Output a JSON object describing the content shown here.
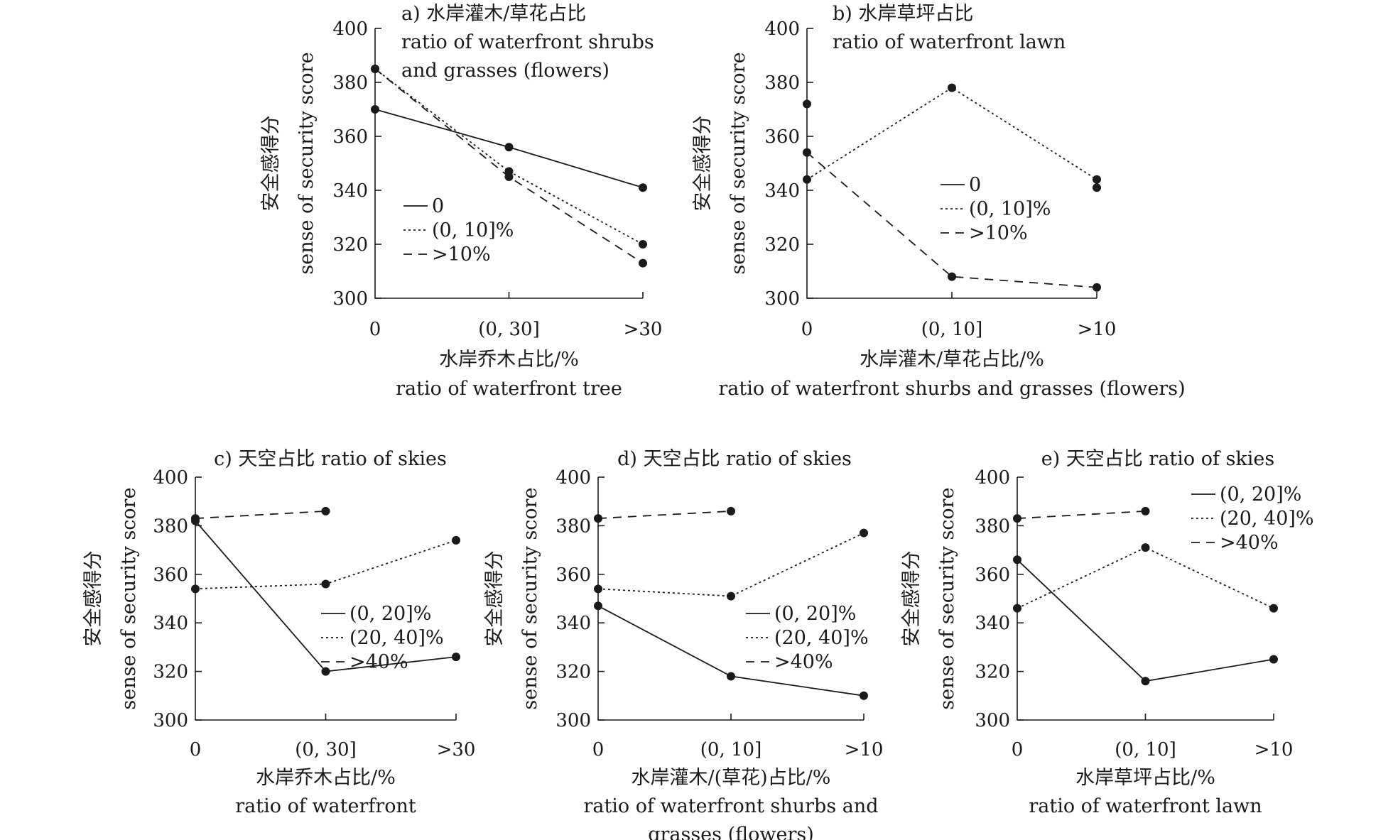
{
  "chart_data": [
    {
      "id": "a",
      "type": "line",
      "title_lines": [
        "a) 水岸灌木/草花占比",
        "ratio of waterfront shrubs",
        "and grasses (flowers)"
      ],
      "xlabel_lines": [
        "水岸乔木占比/%",
        "ratio of waterfront tree"
      ],
      "ylabel_lines": [
        "安全感得分",
        "sense of security score"
      ],
      "categories": [
        "0",
        "(0, 30]",
        ">30"
      ],
      "ylim": [
        300,
        400
      ],
      "yticks": [
        300,
        320,
        340,
        360,
        380,
        400
      ],
      "series": [
        {
          "name": "0",
          "style": "solid",
          "values": [
            370,
            356,
            341
          ]
        },
        {
          "name": "(0, 10]%",
          "style": "dotted",
          "values": [
            385,
            347,
            320
          ]
        },
        {
          "name": ">10%",
          "style": "dashed",
          "values": [
            385,
            345,
            313
          ]
        }
      ],
      "legend": "center-left"
    },
    {
      "id": "b",
      "type": "line",
      "title_lines": [
        "b) 水岸草坪占比",
        "ratio of waterfront lawn"
      ],
      "xlabel_lines": [
        "水岸灌木/草花占比/%",
        "ratio of waterfront shurbs and grasses (flowers)"
      ],
      "ylabel_lines": [
        "安全感得分",
        "sense of security score"
      ],
      "categories": [
        "0",
        "(0, 10]",
        ">10"
      ],
      "ylim": [
        300,
        400
      ],
      "yticks": [
        300,
        320,
        340,
        360,
        380,
        400
      ],
      "series": [
        {
          "name": "0",
          "style": "solid",
          "values": [
            372,
            null,
            341
          ]
        },
        {
          "name": "(0, 10]%",
          "style": "dotted",
          "values": [
            344,
            378,
            344
          ]
        },
        {
          "name": ">10%",
          "style": "dashed",
          "values": [
            354,
            308,
            304
          ]
        }
      ],
      "legend": "center"
    },
    {
      "id": "c",
      "type": "line",
      "title_lines": [
        "c) 天空占比 ratio of skies"
      ],
      "xlabel_lines": [
        "水岸乔木占比/%",
        "ratio of waterfront"
      ],
      "ylabel_lines": [
        "安全感得分",
        "sense of security score"
      ],
      "categories": [
        "0",
        "(0, 30]",
        ">30"
      ],
      "ylim": [
        300,
        400
      ],
      "yticks": [
        300,
        320,
        340,
        360,
        380,
        400
      ],
      "series": [
        {
          "name": "(0, 20]%",
          "style": "solid",
          "values": [
            382,
            320,
            326
          ]
        },
        {
          "name": "(20, 40]%",
          "style": "dotted",
          "values": [
            354,
            356,
            374
          ]
        },
        {
          "name": ">40%",
          "style": "dashed",
          "values": [
            383,
            386,
            null
          ]
        }
      ],
      "legend": "center-right"
    },
    {
      "id": "d",
      "type": "line",
      "title_lines": [
        "d) 天空占比 ratio of skies"
      ],
      "xlabel_lines": [
        "水岸灌木/(草花)占比/%",
        "ratio of waterfront shurbs and",
        "grasses (flowers)"
      ],
      "ylabel_lines": [
        "安全感得分",
        "sense of security score"
      ],
      "categories": [
        "0",
        "(0, 10]",
        ">10"
      ],
      "ylim": [
        300,
        400
      ],
      "yticks": [
        300,
        320,
        340,
        360,
        380,
        400
      ],
      "series": [
        {
          "name": "(0, 20]%",
          "style": "solid",
          "values": [
            347,
            318,
            310
          ]
        },
        {
          "name": "(20, 40]%",
          "style": "dotted",
          "values": [
            354,
            351,
            377
          ]
        },
        {
          "name": ">40%",
          "style": "dashed",
          "values": [
            383,
            386,
            null
          ]
        }
      ],
      "legend": "center-right"
    },
    {
      "id": "e",
      "type": "line",
      "title_lines": [
        "e) 天空占比 ratio of skies"
      ],
      "xlabel_lines": [
        "水岸草坪占比/%",
        "ratio of waterfront lawn"
      ],
      "ylabel_lines": [
        "安全感得分",
        "sense of security score"
      ],
      "categories": [
        "0",
        "(0, 10]",
        ">10"
      ],
      "ylim": [
        300,
        400
      ],
      "yticks": [
        300,
        320,
        340,
        360,
        380,
        400
      ],
      "series": [
        {
          "name": "(0, 20]%",
          "style": "solid",
          "values": [
            366,
            316,
            325
          ]
        },
        {
          "name": "(20, 40]%",
          "style": "dotted",
          "values": [
            346,
            371,
            346
          ]
        },
        {
          "name": ">40%",
          "style": "dashed",
          "values": [
            383,
            386,
            null
          ]
        }
      ],
      "legend": "top-right"
    }
  ]
}
